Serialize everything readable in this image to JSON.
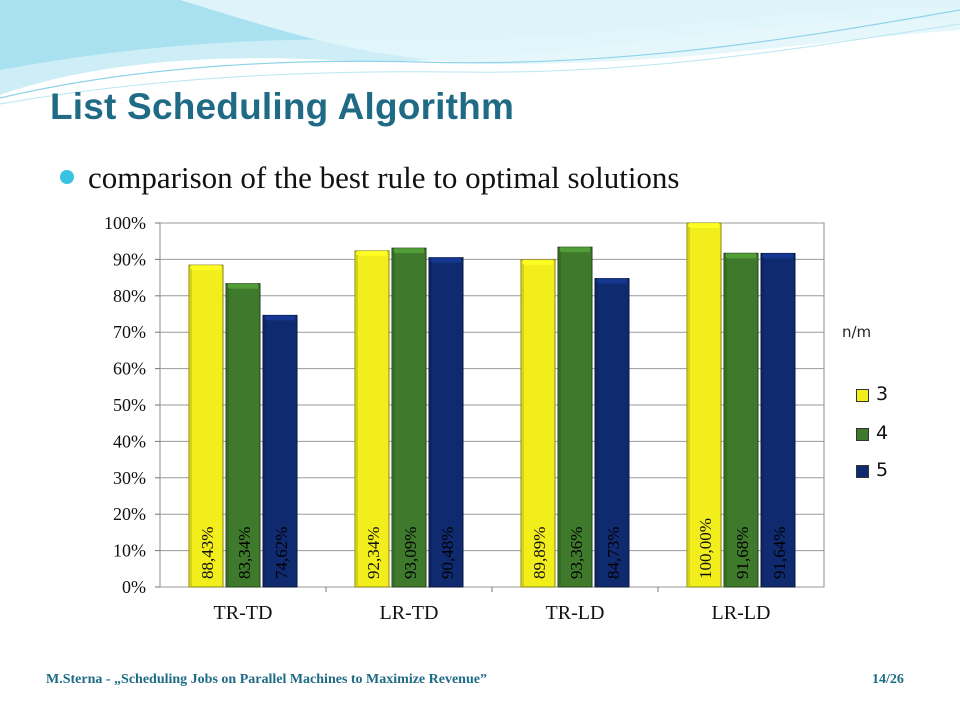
{
  "slide": {
    "title": "List Scheduling Algorithm",
    "bullet": "comparison of the best rule to optimal solutions",
    "footer_left": "M.Sterna - „Scheduling Jobs on Parallel Machines to Maximize Revenue”",
    "footer_right": "14/26"
  },
  "colors": {
    "title": "#1f6b86",
    "bullet": "#38c3e0",
    "series": [
      "#f2ee1c",
      "#3f7a2c",
      "#102a70"
    ]
  },
  "chart_data": {
    "type": "bar",
    "categories": [
      "TR-TD",
      "LR-TD",
      "TR-LD",
      "LR-LD"
    ],
    "series": [
      {
        "name": "3",
        "values": [
          88.43,
          92.34,
          89.89,
          100.0
        ],
        "labels": [
          "88,43%",
          "92,34%",
          "89,89%",
          "100,00%"
        ]
      },
      {
        "name": "4",
        "values": [
          83.34,
          93.09,
          93.36,
          91.68
        ],
        "labels": [
          "83,34%",
          "93,09%",
          "93,36%",
          "91,68%"
        ]
      },
      {
        "name": "5",
        "values": [
          74.62,
          90.48,
          84.73,
          91.64
        ],
        "labels": [
          "74,62%",
          "90,48%",
          "84,73%",
          "91,64%"
        ]
      }
    ],
    "ylim": [
      0,
      100
    ],
    "yticks": [
      "0%",
      "10%",
      "20%",
      "30%",
      "40%",
      "50%",
      "60%",
      "70%",
      "80%",
      "90%",
      "100%"
    ],
    "legend_title": "n/m",
    "legend_position": "right",
    "grid": true
  }
}
